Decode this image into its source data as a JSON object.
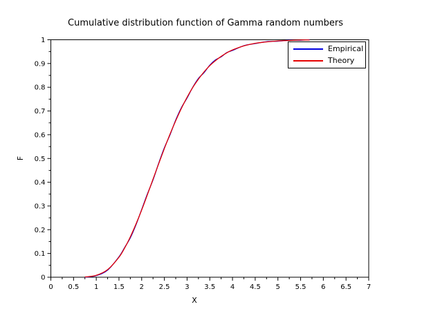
{
  "figure": {
    "background": "#ffffff"
  },
  "chart_data": {
    "type": "line",
    "title": "Cumulative distribution function of Gamma random numbers",
    "xlabel": "X",
    "ylabel": "F",
    "xlim": [
      0,
      7
    ],
    "ylim": [
      0,
      1
    ],
    "grid": false,
    "x_tick_labels": [
      "0",
      "0.5",
      "1",
      "1.5",
      "2",
      "2.5",
      "3",
      "3.5",
      "4",
      "4.5",
      "5",
      "5.5",
      "6",
      "6.5",
      "7"
    ],
    "y_tick_labels": [
      "0",
      "0.1",
      "0.2",
      "0.3",
      "0.4",
      "0.5",
      "0.6",
      "0.7",
      "0.8",
      "0.9",
      "1"
    ],
    "x_minor_tick_step": 0.25,
    "y_minor_tick_step": 0.05,
    "legend": {
      "position": "top-right-inside",
      "border": true,
      "entries": [
        "Empirical",
        "Theory"
      ]
    },
    "series": [
      {
        "name": "Empirical",
        "color": "#0000e0",
        "x": [
          0.75,
          1.0,
          1.25,
          1.5,
          1.625,
          1.75,
          1.875,
          2.0,
          2.125,
          2.25,
          2.375,
          2.5,
          2.625,
          2.75,
          2.875,
          3.0,
          3.125,
          3.25,
          3.375,
          3.5,
          3.625,
          3.75,
          3.875,
          4.0,
          4.25,
          4.5,
          4.75,
          5.0,
          5.25,
          5.5,
          5.7
        ],
        "y": [
          0.0,
          0.007,
          0.03,
          0.086,
          0.125,
          0.166,
          0.221,
          0.285,
          0.35,
          0.41,
          0.48,
          0.545,
          0.6,
          0.662,
          0.714,
          0.755,
          0.8,
          0.837,
          0.862,
          0.893,
          0.915,
          0.928,
          0.946,
          0.955,
          0.975,
          0.984,
          0.992,
          0.994,
          0.998,
          0.998,
          1.0
        ]
      },
      {
        "name": "Theory",
        "color": "#e60000",
        "x": [
          0.75,
          1.0,
          1.25,
          1.5,
          1.625,
          1.75,
          1.875,
          2.0,
          2.125,
          2.25,
          2.375,
          2.5,
          2.625,
          2.75,
          2.875,
          3.0,
          3.125,
          3.25,
          3.375,
          3.5,
          3.625,
          3.75,
          3.875,
          4.0,
          4.25,
          4.5,
          4.75,
          5.0,
          5.25,
          5.5,
          5.7
        ],
        "y": [
          0.001,
          0.008,
          0.032,
          0.084,
          0.123,
          0.17,
          0.224,
          0.283,
          0.347,
          0.413,
          0.478,
          0.542,
          0.603,
          0.659,
          0.711,
          0.758,
          0.799,
          0.834,
          0.865,
          0.891,
          0.912,
          0.93,
          0.945,
          0.957,
          0.974,
          0.985,
          0.991,
          0.995,
          0.997,
          0.999,
          0.999
        ]
      }
    ]
  }
}
